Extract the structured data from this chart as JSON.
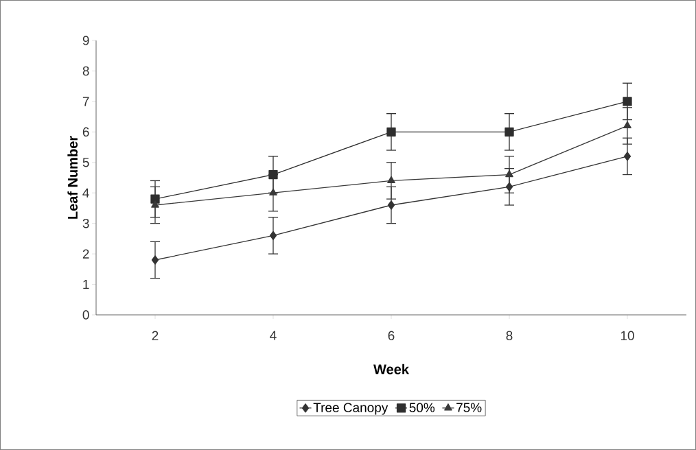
{
  "chart_data": {
    "type": "line",
    "xlabel": "Week",
    "ylabel": "Leaf Number",
    "categories": [
      "2",
      "4",
      "6",
      "8",
      "10"
    ],
    "series": [
      {
        "name": "Tree Canopy",
        "color": "#333333",
        "marker": "diamond",
        "values": [
          1.8,
          2.6,
          3.6,
          4.2,
          5.2
        ],
        "errors": [
          0.6,
          0.6,
          0.6,
          0.6,
          0.6
        ]
      },
      {
        "name": "50%",
        "color": "#2e2e2e",
        "marker": "square",
        "values": [
          3.8,
          4.6,
          6.0,
          6.0,
          7.0
        ],
        "errors": [
          0.6,
          0.6,
          0.6,
          0.6,
          0.6
        ]
      },
      {
        "name": "75%",
        "color": "#393939",
        "marker": "triangle",
        "values": [
          3.6,
          4.0,
          4.4,
          4.6,
          6.2
        ],
        "errors": [
          0.6,
          0.6,
          0.6,
          0.6,
          0.6
        ]
      }
    ],
    "ylim": [
      0,
      9
    ],
    "yticks": [
      0,
      1,
      2,
      3,
      4,
      5,
      6,
      7,
      8,
      9
    ],
    "grid": false,
    "legend": "bottom",
    "line_style": "solid"
  }
}
